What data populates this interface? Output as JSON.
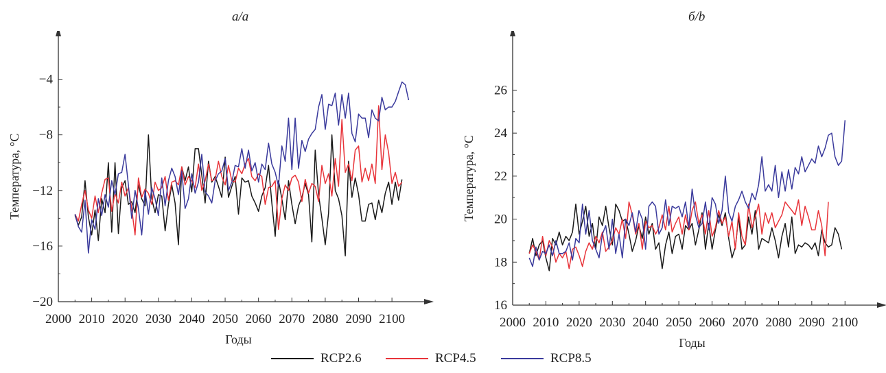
{
  "figure": {
    "panel_titles": [
      "a/a",
      "б/b"
    ],
    "legend": [
      {
        "label": "RCP2.6",
        "color": "#1a1a1a"
      },
      {
        "label": "RCP4.5",
        "color": "#e8343a"
      },
      {
        "label": "RCP8.5",
        "color": "#3a3a9c"
      }
    ]
  },
  "chart_data": [
    {
      "type": "line",
      "title": "a/a",
      "xlabel": "Годы",
      "ylabel": "Температура, °C",
      "xlim": [
        2000,
        2108
      ],
      "ylim": [
        -20,
        -2
      ],
      "xticks": [
        2000,
        2010,
        2020,
        2030,
        2040,
        2050,
        2060,
        2070,
        2080,
        2090,
        2100
      ],
      "yticks": [
        -20,
        -16,
        -12,
        -8,
        -4
      ],
      "minor_yticks": [
        -18,
        -14,
        -10,
        -6
      ],
      "grid": false,
      "x_start": 2005,
      "x_step": 1,
      "series": [
        {
          "name": "RCP2.6",
          "color": "#1a1a1a",
          "values": [
            -13.8,
            -14.5,
            -13.9,
            -11.3,
            -13.9,
            -15.2,
            -13.4,
            -15.6,
            -12.6,
            -13.6,
            -10.0,
            -15.0,
            -10.0,
            -15.1,
            -11.8,
            -11.3,
            -13.0,
            -12.8,
            -13.6,
            -11.6,
            -12.6,
            -13.1,
            -8.0,
            -12.6,
            -13.6,
            -12.3,
            -12.4,
            -14.9,
            -13.0,
            -11.6,
            -12.9,
            -15.9,
            -10.3,
            -11.3,
            -10.3,
            -12.1,
            -9.0,
            -9.0,
            -10.9,
            -12.9,
            -9.9,
            -11.4,
            -11.0,
            -11.7,
            -12.5,
            -9.6,
            -12.5,
            -11.7,
            -11.0,
            -13.7,
            -11.1,
            -11.4,
            -11.3,
            -12.4,
            -12.9,
            -13.5,
            -12.4,
            -11.8,
            -10.2,
            -12.9,
            -15.3,
            -11.3,
            -12.6,
            -14.1,
            -11.3,
            -13.0,
            -14.4,
            -13.1,
            -12.5,
            -11.5,
            -12.3,
            -15.7,
            -9.1,
            -12.3,
            -14.0,
            -15.9,
            -13.6,
            -8.0,
            -12.0,
            -12.6,
            -13.8,
            -16.7,
            -9.9,
            -12.5,
            -11.1,
            -12.3,
            -14.2,
            -14.2,
            -13.0,
            -12.9,
            -14.1,
            -12.7,
            -13.6,
            -12.2,
            -11.4,
            -13.0,
            -11.4,
            -12.7,
            -11.2
          ]
        },
        {
          "name": "RCP4.5",
          "color": "#e8343a",
          "values": [
            -13.7,
            -14.2,
            -13.0,
            -12.0,
            -13.4,
            -14.0,
            -12.4,
            -13.6,
            -12.2,
            -11.2,
            -11.1,
            -13.5,
            -12.2,
            -12.9,
            -11.4,
            -12.4,
            -11.8,
            -13.3,
            -15.2,
            -11.1,
            -12.5,
            -11.9,
            -12.2,
            -13.0,
            -11.4,
            -12.0,
            -11.8,
            -11.0,
            -12.7,
            -11.4,
            -11.3,
            -11.6,
            -10.3,
            -11.6,
            -11.0,
            -11.3,
            -11.8,
            -10.1,
            -12.0,
            -11.3,
            -10.1,
            -11.3,
            -11.2,
            -9.9,
            -11.0,
            -11.6,
            -10.2,
            -11.3,
            -11.4,
            -10.4,
            -10.8,
            -10.1,
            -9.7,
            -11.0,
            -11.3,
            -10.8,
            -11.0,
            -13.0,
            -11.8,
            -11.7,
            -11.3,
            -14.8,
            -12.6,
            -11.6,
            -12.0,
            -11.1,
            -10.9,
            -11.4,
            -12.8,
            -11.2,
            -12.2,
            -11.5,
            -11.7,
            -12.8,
            -10.2,
            -11.5,
            -10.8,
            -12.4,
            -9.7,
            -11.7,
            -6.9,
            -10.7,
            -10.1,
            -11.3,
            -9.1,
            -8.8,
            -11.4,
            -10.4,
            -11.3,
            -10.1,
            -11.5,
            -5.9,
            -10.5,
            -8.0,
            -9.3,
            -11.5,
            -10.7,
            -11.7,
            -11.4
          ]
        },
        {
          "name": "RCP8.5",
          "color": "#3a3a9c",
          "values": [
            -13.7,
            -14.6,
            -15.0,
            -12.7,
            -16.5,
            -14.1,
            -14.8,
            -12.6,
            -13.8,
            -12.3,
            -13.2,
            -11.3,
            -12.3,
            -10.8,
            -10.7,
            -9.4,
            -11.6,
            -14.0,
            -12.0,
            -13.3,
            -15.2,
            -12.0,
            -13.7,
            -11.8,
            -12.6,
            -13.8,
            -11.1,
            -13.1,
            -11.3,
            -10.4,
            -11.0,
            -12.3,
            -10.6,
            -13.3,
            -12.6,
            -10.8,
            -12.2,
            -11.4,
            -9.4,
            -12.1,
            -12.4,
            -12.9,
            -11.3,
            -10.8,
            -10.6,
            -9.7,
            -12.0,
            -11.4,
            -10.2,
            -10.3,
            -9.0,
            -10.4,
            -9.1,
            -10.6,
            -10.0,
            -11.4,
            -10.1,
            -10.5,
            -8.6,
            -10.1,
            -10.7,
            -11.7,
            -8.8,
            -9.9,
            -6.8,
            -10.5,
            -6.8,
            -10.4,
            -8.4,
            -9.2,
            -8.3,
            -7.9,
            -7.6,
            -6.0,
            -5.1,
            -7.6,
            -5.8,
            -5.9,
            -5.0,
            -7.3,
            -5.1,
            -6.8,
            -5.0,
            -7.9,
            -8.5,
            -6.5,
            -6.8,
            -6.8,
            -8.2,
            -6.2,
            -6.8,
            -7.0,
            -5.3,
            -6.2,
            -6.0,
            -6.0,
            -5.6,
            -4.9,
            -4.2,
            -4.4,
            -5.5
          ]
        }
      ]
    },
    {
      "type": "line",
      "title": "б/b",
      "xlabel": "Годы",
      "ylabel": "Температура, °C",
      "xlim": [
        2000,
        2108
      ],
      "ylim": [
        16,
        27.8
      ],
      "xticks": [
        2000,
        2010,
        2020,
        2030,
        2040,
        2050,
        2060,
        2070,
        2080,
        2090,
        2100
      ],
      "yticks": [
        16,
        18,
        20,
        22,
        24,
        26
      ],
      "minor_yticks": [
        17,
        19,
        21,
        23,
        25
      ],
      "grid": false,
      "x_start": 2005,
      "x_step": 1,
      "series": [
        {
          "name": "RCP2.6",
          "color": "#1a1a1a",
          "values": [
            18.4,
            19.1,
            18.3,
            18.8,
            19.0,
            18.2,
            17.6,
            19.1,
            18.8,
            19.4,
            18.8,
            19.2,
            19.0,
            19.4,
            20.7,
            19.3,
            19.9,
            20.6,
            19.2,
            19.8,
            18.6,
            20.1,
            19.7,
            20.6,
            19.6,
            18.8,
            20.7,
            20.4,
            19.9,
            20.0,
            19.3,
            18.5,
            19.0,
            19.7,
            19.1,
            20.1,
            19.3,
            19.8,
            18.6,
            18.9,
            17.7,
            18.8,
            19.4,
            18.4,
            19.2,
            19.3,
            18.6,
            19.7,
            19.5,
            19.8,
            18.8,
            19.5,
            20.3,
            18.6,
            19.8,
            18.6,
            19.5,
            20.2,
            19.7,
            20.3,
            19.1,
            18.2,
            18.7,
            20.1,
            18.6,
            18.8,
            20.1,
            19.3,
            20.4,
            18.6,
            19.1,
            19.0,
            18.9,
            19.6,
            19.0,
            18.2,
            19.2,
            19.8,
            18.7,
            20.1,
            18.4,
            18.8,
            18.7,
            18.9,
            18.8,
            18.6,
            18.9,
            18.3,
            19.5,
            18.9,
            18.7,
            18.8,
            19.6,
            19.3,
            18.6
          ]
        },
        {
          "name": "RCP4.5",
          "color": "#e8343a",
          "values": [
            18.4,
            18.8,
            18.5,
            18.1,
            19.2,
            18.3,
            19.0,
            18.7,
            18.0,
            18.4,
            18.2,
            18.5,
            17.7,
            18.6,
            18.7,
            18.3,
            17.8,
            18.5,
            18.9,
            18.6,
            19.2,
            18.9,
            19.4,
            18.5,
            18.7,
            19.0,
            19.6,
            19.3,
            20.0,
            19.1,
            20.8,
            20.2,
            19.3,
            19.8,
            18.6,
            19.9,
            19.6,
            19.7,
            19.3,
            19.6,
            20.2,
            19.5,
            20.6,
            19.4,
            19.8,
            20.1,
            19.3,
            20.2,
            19.5,
            20.4,
            20.8,
            19.8,
            20.2,
            19.3,
            20.4,
            19.2,
            19.6,
            20.4,
            19.8,
            20.1,
            19.2,
            19.9,
            18.6,
            20.3,
            19.2,
            18.8,
            20.7,
            19.6,
            20.1,
            20.7,
            19.3,
            20.3,
            19.8,
            20.3,
            19.6,
            19.9,
            20.2,
            20.8,
            20.6,
            20.4,
            20.2,
            20.9,
            19.7,
            20.6,
            20.1,
            19.5,
            19.5,
            20.4,
            19.7,
            18.3,
            20.8
          ]
        },
        {
          "name": "RCP8.5",
          "color": "#3a3a9c",
          "values": [
            18.2,
            17.8,
            18.7,
            18.1,
            18.5,
            18.4,
            18.8,
            18.3,
            19.0,
            18.4,
            18.4,
            18.5,
            18.9,
            18.1,
            19.1,
            18.9,
            20.7,
            19.3,
            20.4,
            19.0,
            18.6,
            18.2,
            19.3,
            19.7,
            18.6,
            20.0,
            18.4,
            19.3,
            18.2,
            20.0,
            19.7,
            20.3,
            19.4,
            20.4,
            20.0,
            18.6,
            20.6,
            20.8,
            20.6,
            19.3,
            19.6,
            20.9,
            19.7,
            20.6,
            20.5,
            20.6,
            20.1,
            20.8,
            19.6,
            21.4,
            20.2,
            19.6,
            19.8,
            20.8,
            19.5,
            21.0,
            20.7,
            19.8,
            20.4,
            22.0,
            20.3,
            19.9,
            20.6,
            20.9,
            21.3,
            20.8,
            20.5,
            21.2,
            20.9,
            21.6,
            22.9,
            21.3,
            21.6,
            21.3,
            22.5,
            21.0,
            22.2,
            21.3,
            22.3,
            21.4,
            22.4,
            22.1,
            22.9,
            22.2,
            22.5,
            22.8,
            22.6,
            23.4,
            22.9,
            23.3,
            23.9,
            24.0,
            22.9,
            22.5,
            22.7,
            24.6
          ]
        }
      ]
    }
  ]
}
